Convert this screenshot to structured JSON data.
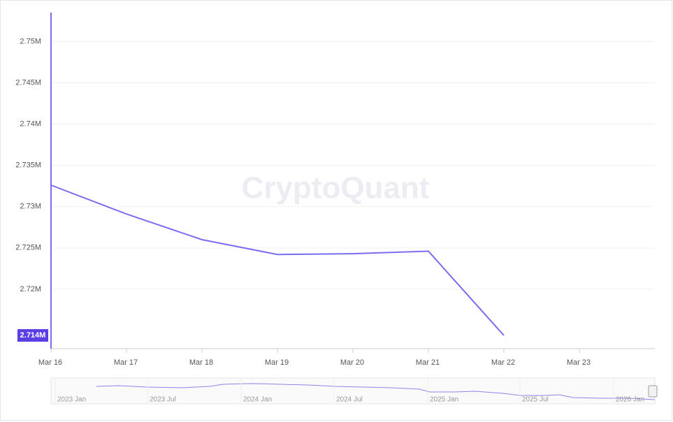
{
  "chart_data": {
    "type": "line",
    "watermark": "CryptoQuant",
    "categories": [
      "Mar 16",
      "Mar 17",
      "Mar 18",
      "Mar 19",
      "Mar 20",
      "Mar 21",
      "Mar 22",
      "Mar 23"
    ],
    "series": [
      {
        "color": "#7b6cf0",
        "values": [
          2732600,
          2729100,
          2726000,
          2724200,
          2724300,
          2724600,
          2714400,
          null
        ],
        "value_labels": [
          null,
          null,
          null,
          null,
          null,
          null,
          "2.714M",
          null
        ]
      }
    ],
    "ylim": [
      2712800,
      2753500
    ],
    "yticks": [
      {
        "value": 2720000,
        "label": "2.72M"
      },
      {
        "value": 2725000,
        "label": "2.725M"
      },
      {
        "value": 2730000,
        "label": "2.73M"
      },
      {
        "value": 2735000,
        "label": "2.735M"
      },
      {
        "value": 2740000,
        "label": "2.74M"
      },
      {
        "value": 2745000,
        "label": "2.745M"
      },
      {
        "value": 2750000,
        "label": "2.75M"
      }
    ],
    "grid": true,
    "navigator_labels": [
      "2023 Jan",
      "2023 Jul",
      "2024 Jan",
      "2024 Jul",
      "2025 Jan",
      "2025 Jul",
      "2026 Jan"
    ]
  }
}
